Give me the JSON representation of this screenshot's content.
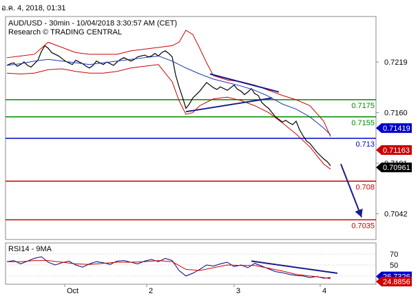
{
  "header": {
    "date_text": "อ.ค. 4, 2018, 01:31"
  },
  "colors": {
    "price": "#000000",
    "bollinger": "#cc0000",
    "ma": "#2233aa",
    "trendline": "#1a1a8c",
    "resistance": "#008800",
    "pivot": "#0000cc",
    "support": "#cc0000",
    "rsi": "#000080",
    "rsi_ma": "#cc0000",
    "current_price_box": "#000000",
    "blue_box": "#0000cc",
    "red_box": "#cc0000"
  },
  "chart_data": [
    {
      "type": "line",
      "title": "AUD/USD - 30min - 10/04/2018 3:30:57 AM (CET)",
      "subtitle": "Research © TRADING CENTRAL",
      "x_tick_labels": [
        "Oct",
        "2",
        "3",
        "4"
      ],
      "y_tick_labels": [
        "0.7219",
        "0.7160",
        "0.7101",
        "0.7042"
      ],
      "ylim": [
        0.7012,
        0.7272
      ],
      "grid": false,
      "price_levels": [
        {
          "label": "0.7175",
          "value": 0.7175,
          "role": "resistance"
        },
        {
          "label": "0.7155",
          "value": 0.7155,
          "role": "resistance"
        },
        {
          "label": "0.713",
          "value": 0.713,
          "role": "pivot"
        },
        {
          "label": "0.708",
          "value": 0.708,
          "role": "support"
        },
        {
          "label": "0.7035",
          "value": 0.7035,
          "role": "support"
        }
      ],
      "price_markers": [
        {
          "label": "0.71419",
          "value": 0.71419,
          "style": "blue"
        },
        {
          "label": "0.71163",
          "value": 0.71163,
          "style": "red"
        },
        {
          "label": "0.70961",
          "value": 0.70961,
          "style": "black"
        }
      ],
      "series": [
        {
          "role": "price",
          "x": [
            0,
            5,
            10,
            15,
            20,
            25,
            30,
            35,
            40,
            45,
            50,
            55,
            60,
            65,
            70,
            75,
            80,
            85,
            90,
            95,
            100,
            105,
            110,
            115,
            120,
            125,
            130,
            135,
            140,
            145,
            150,
            155,
            160,
            165,
            170,
            175,
            180,
            185,
            190,
            195,
            200,
            205,
            210,
            215,
            220,
            225,
            230,
            235,
            240,
            245,
            250,
            255,
            260,
            265,
            270,
            275,
            280,
            285,
            290,
            295,
            300,
            305,
            310,
            315,
            320,
            325,
            330,
            335,
            340,
            345,
            350,
            355,
            360,
            365,
            370,
            375,
            380,
            385,
            390,
            395,
            400,
            405,
            410,
            415,
            420,
            425,
            430,
            435,
            440,
            445,
            450,
            455,
            460,
            465,
            470
          ],
          "values": [
            0.7215,
            0.7217,
            0.7218,
            0.7214,
            0.7216,
            0.7219,
            0.7215,
            0.7213,
            0.7217,
            0.7221,
            0.7231,
            0.7238,
            0.7235,
            0.723,
            0.7228,
            0.7226,
            0.7223,
            0.722,
            0.7218,
            0.7216,
            0.7221,
            0.7219,
            0.7217,
            0.7214,
            0.7212,
            0.7215,
            0.722,
            0.7218,
            0.7216,
            0.7219,
            0.7217,
            0.7215,
            0.7219,
            0.7222,
            0.7224,
            0.7222,
            0.722,
            0.7222,
            0.7225,
            0.7226,
            0.7227,
            0.7225,
            0.7226,
            0.7229,
            0.7226,
            0.723,
            0.7232,
            0.7229,
            0.7225,
            0.7204,
            0.719,
            0.7178,
            0.7165,
            0.717,
            0.7177,
            0.7181,
            0.7185,
            0.719,
            0.7195,
            0.7192,
            0.7189,
            0.7187,
            0.719,
            0.7188,
            0.7186,
            0.7189,
            0.7192,
            0.7187,
            0.7185,
            0.7181,
            0.7184,
            0.7188,
            0.7182,
            0.718,
            0.7172,
            0.7168,
            0.7165,
            0.716,
            0.7155,
            0.7152,
            0.7149,
            0.7151,
            0.7148,
            0.7146,
            0.715,
            0.714,
            0.7133,
            0.7127,
            0.7124,
            0.7119,
            0.7114,
            0.711,
            0.7106,
            0.7103,
            0.7098
          ]
        },
        {
          "role": "bollinger_upper",
          "x": [
            0,
            20,
            40,
            60,
            80,
            100,
            120,
            140,
            160,
            180,
            200,
            220,
            240,
            250,
            260,
            270,
            280,
            290,
            300,
            320,
            340,
            360,
            380,
            400,
            420,
            440,
            460,
            470
          ],
          "values": [
            0.7224,
            0.7226,
            0.7228,
            0.7242,
            0.7236,
            0.723,
            0.7228,
            0.7228,
            0.7228,
            0.7232,
            0.7234,
            0.7236,
            0.7238,
            0.7242,
            0.7256,
            0.7251,
            0.7235,
            0.7218,
            0.7203,
            0.7198,
            0.7196,
            0.7192,
            0.7186,
            0.718,
            0.7175,
            0.7168,
            0.715,
            0.7132
          ]
        },
        {
          "role": "bollinger_lower",
          "x": [
            0,
            20,
            40,
            60,
            80,
            100,
            120,
            140,
            160,
            180,
            200,
            220,
            240,
            250,
            260,
            270,
            280,
            290,
            300,
            320,
            340,
            360,
            380,
            400,
            420,
            440,
            460,
            470
          ],
          "values": [
            0.7206,
            0.7205,
            0.7206,
            0.721,
            0.7211,
            0.7208,
            0.7206,
            0.7206,
            0.7208,
            0.7212,
            0.7214,
            0.7216,
            0.7196,
            0.7174,
            0.7158,
            0.716,
            0.7168,
            0.7172,
            0.7176,
            0.7178,
            0.7174,
            0.7168,
            0.716,
            0.7148,
            0.7135,
            0.712,
            0.71,
            0.7094
          ]
        },
        {
          "role": "moving_average",
          "x": [
            0,
            20,
            40,
            60,
            80,
            100,
            120,
            140,
            160,
            180,
            200,
            220,
            240,
            260,
            280,
            300,
            320,
            340,
            360,
            380,
            400,
            420,
            440,
            460,
            470
          ],
          "values": [
            0.7215,
            0.7217,
            0.722,
            0.7222,
            0.722,
            0.7218,
            0.7216,
            0.7218,
            0.722,
            0.7222,
            0.7224,
            0.7226,
            0.722,
            0.7212,
            0.7205,
            0.7199,
            0.7195,
            0.7191,
            0.7186,
            0.7179,
            0.717,
            0.7164,
            0.7155,
            0.7142,
            0.7134
          ]
        }
      ],
      "trendlines": [
        {
          "x": [
            260,
            385
          ],
          "values": [
            0.7161,
            0.7177
          ]
        },
        {
          "x": [
            295,
            395
          ],
          "values": [
            0.7205,
            0.7184
          ]
        }
      ],
      "arrow": {
        "x": [
          485,
          515
        ],
        "values": [
          0.71,
          0.7038
        ]
      }
    },
    {
      "type": "line",
      "title": "RSI14 - 9MA",
      "y_tick_labels": [
        "70",
        "50",
        "30"
      ],
      "ylim": [
        15,
        90
      ],
      "price_markers": [
        {
          "label": "26.7326",
          "value": 26.7326,
          "style": "blue"
        },
        {
          "label": "24.8856",
          "value": 24.8856,
          "style": "red"
        }
      ],
      "series": [
        {
          "role": "rsi",
          "x": [
            0,
            10,
            20,
            30,
            40,
            50,
            60,
            70,
            80,
            90,
            100,
            110,
            120,
            130,
            140,
            150,
            160,
            170,
            180,
            190,
            200,
            210,
            220,
            230,
            240,
            250,
            260,
            270,
            280,
            290,
            300,
            310,
            320,
            330,
            340,
            350,
            360,
            370,
            380,
            390,
            400,
            410,
            420,
            430,
            440,
            450,
            460,
            470
          ],
          "values": [
            56,
            58,
            52,
            57,
            62,
            65,
            55,
            50,
            54,
            57,
            50,
            46,
            52,
            56,
            54,
            51,
            57,
            58,
            55,
            52,
            57,
            60,
            56,
            62,
            58,
            40,
            30,
            35,
            42,
            50,
            48,
            52,
            55,
            47,
            50,
            45,
            53,
            48,
            43,
            38,
            36,
            33,
            31,
            30,
            27,
            29,
            26,
            27
          ]
        },
        {
          "role": "rsi_ma",
          "x": [
            0,
            20,
            40,
            60,
            80,
            100,
            120,
            140,
            160,
            180,
            200,
            220,
            240,
            260,
            280,
            300,
            320,
            340,
            360,
            380,
            400,
            420,
            440,
            460,
            470
          ],
          "values": [
            56,
            56,
            58,
            58,
            55,
            52,
            51,
            53,
            55,
            55,
            56,
            58,
            56,
            42,
            40,
            45,
            50,
            49,
            49,
            44,
            39,
            33,
            30,
            27,
            25
          ]
        }
      ],
      "trendlines": [
        {
          "x": [
            355,
            480
          ],
          "values": [
            57,
            35
          ]
        }
      ]
    }
  ]
}
